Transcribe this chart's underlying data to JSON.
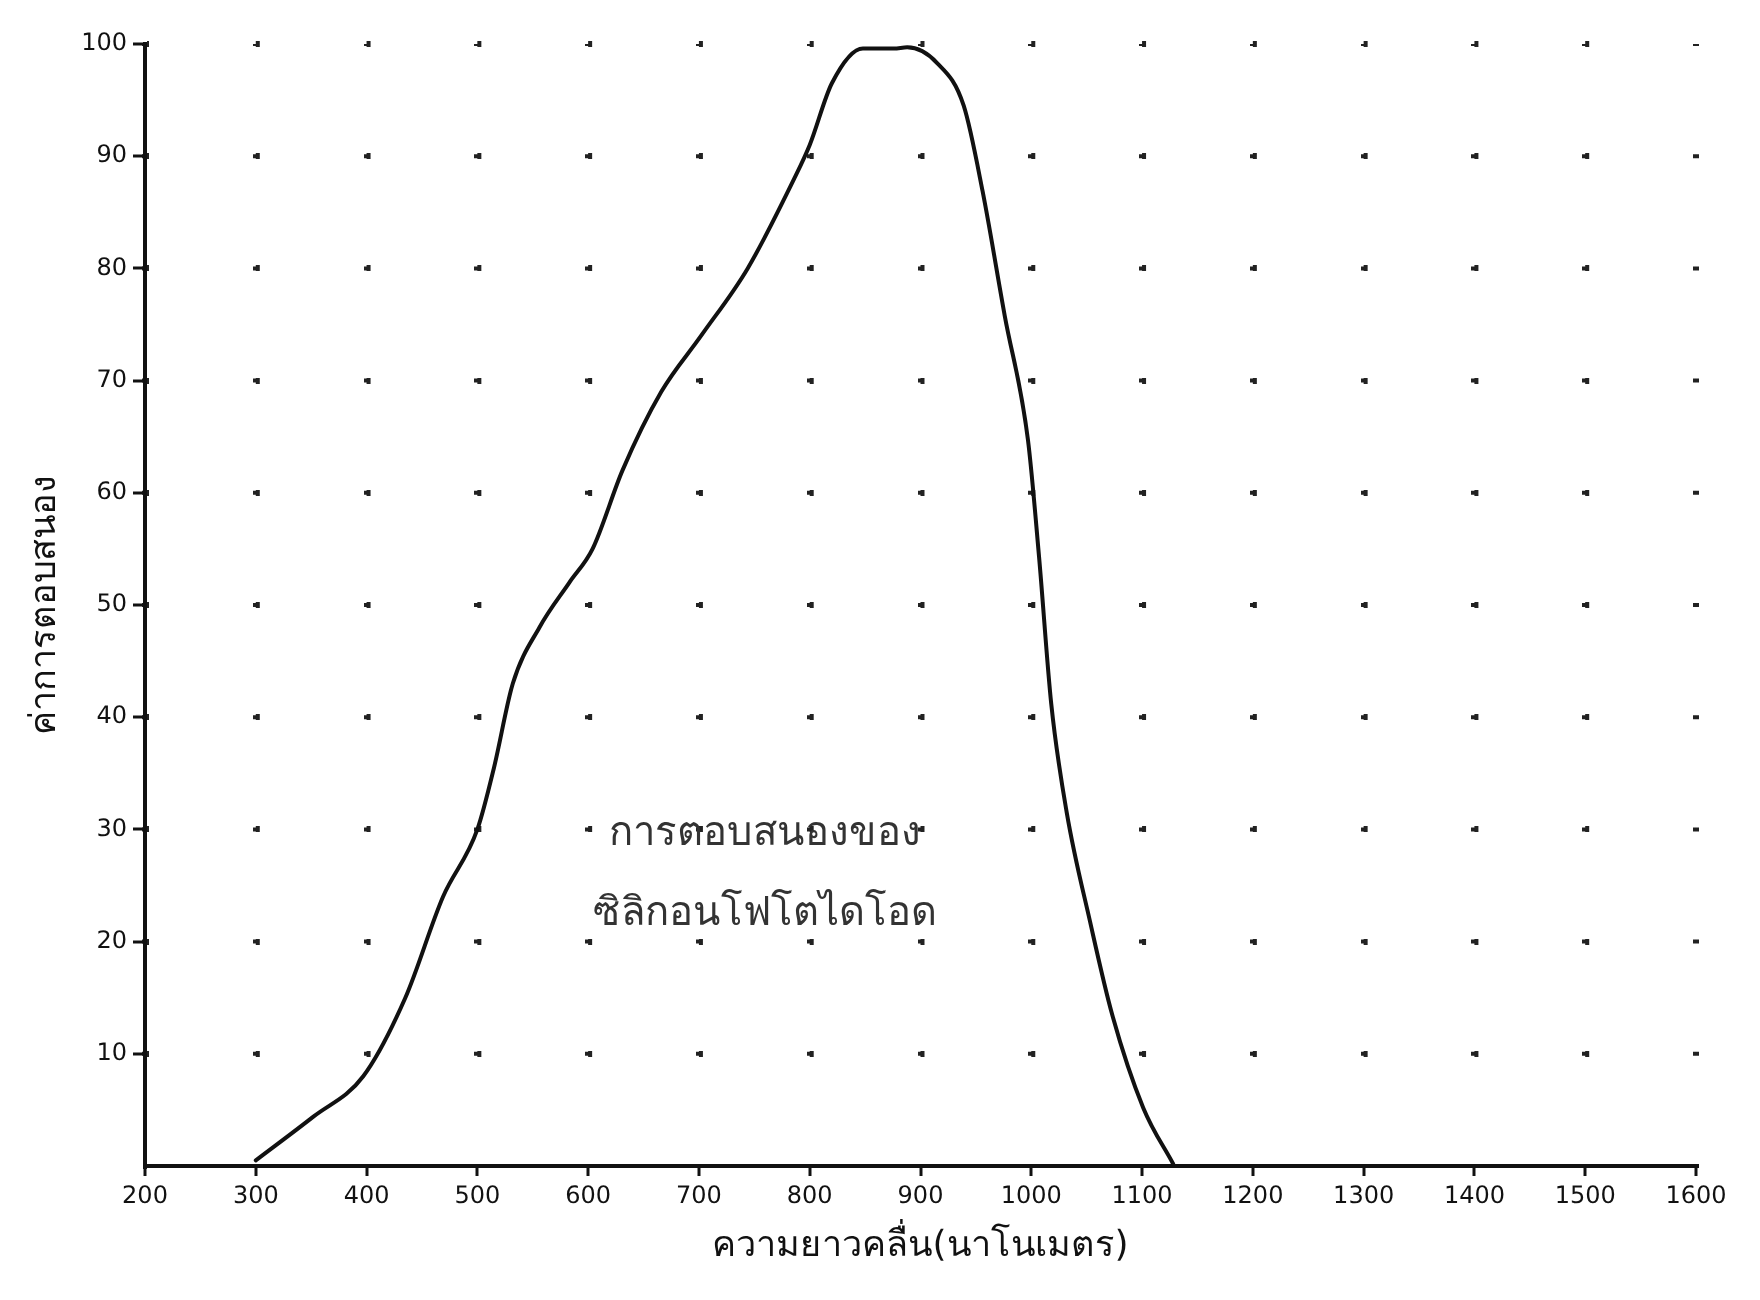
{
  "chart_data": {
    "type": "line",
    "xlabel": "ความยาวคลื่น(นาโนเมตร)",
    "ylabel": "ค่าการตอบสนอง",
    "annotations": [
      "การตอบสนองของ",
      "ซิลิกอนโฟโตไดโอด"
    ],
    "xlim": [
      200,
      1600
    ],
    "xticks": [
      200,
      300,
      400,
      500,
      600,
      700,
      800,
      900,
      1000,
      1100,
      1200,
      1300,
      1400,
      1500,
      1600
    ],
    "ylim": [
      0,
      100
    ],
    "yticks": [
      10,
      20,
      30,
      40,
      50,
      60,
      70,
      80,
      90,
      100
    ],
    "grid": true,
    "legend": false,
    "marker": "none",
    "line_style": "solid",
    "series": [
      {
        "color": "#111111",
        "x": [
          300,
          352,
          397,
          435,
          469,
          500,
          515,
          532,
          556,
          583,
          604,
          631,
          666,
          702,
          744,
          786,
          800,
          820,
          848,
          876,
          888,
          915,
          939,
          956,
          976,
          997,
          1007,
          1018,
          1032,
          1053,
          1073,
          1101,
          1128
        ],
        "values": [
          0.5,
          4.4,
          8,
          15,
          24,
          30,
          35.5,
          43,
          48,
          52,
          55,
          62,
          69,
          74,
          80,
          88,
          91,
          96.5,
          99.6,
          99.6,
          99.7,
          98.3,
          94.5,
          86.9,
          75.8,
          64.7,
          54.3,
          41.2,
          31.5,
          21.8,
          13.5,
          5.2,
          0.2
        ]
      }
    ]
  }
}
